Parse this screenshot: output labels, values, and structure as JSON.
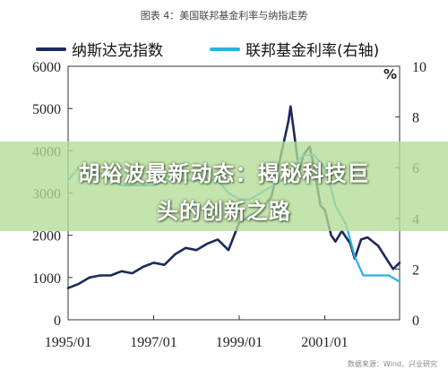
{
  "figure_title": "图表 4：美国联邦基金利率与纳指走势",
  "overlay_headline": {
    "line1": "胡裕波最新动态：揭秘科技巨",
    "line2": "头的创新之路"
  },
  "source_note": "数据来源：Wind、兴业研究",
  "colors": {
    "nasdaq": "#1b2a5c",
    "fed_rate": "#2ab0e4",
    "banner": "#b4dc96"
  },
  "chart_data": {
    "type": "line",
    "title": "图表 4：美国联邦基金利率与纳指走势",
    "x_ticks": [
      "1995/01",
      "1997/01",
      "1999/01",
      "2001/01"
    ],
    "x_range": [
      1995.0,
      2002.75
    ],
    "y_left": {
      "range": [
        0,
        6000
      ],
      "ticks": [
        0,
        1000,
        2000,
        3000,
        4000,
        5000,
        6000
      ]
    },
    "y_right": {
      "range": [
        0,
        10
      ],
      "ticks": [
        0,
        2,
        4,
        6,
        8,
        10
      ],
      "unit": "%"
    },
    "grid": false,
    "legend_position": "top",
    "series": [
      {
        "name": "纳斯达克指数",
        "axis": "left",
        "points": [
          [
            1995.0,
            750
          ],
          [
            1995.25,
            850
          ],
          [
            1995.5,
            1000
          ],
          [
            1995.75,
            1050
          ],
          [
            1996.0,
            1050
          ],
          [
            1996.25,
            1150
          ],
          [
            1996.5,
            1100
          ],
          [
            1996.75,
            1250
          ],
          [
            1997.0,
            1350
          ],
          [
            1997.25,
            1300
          ],
          [
            1997.5,
            1550
          ],
          [
            1997.75,
            1700
          ],
          [
            1998.0,
            1650
          ],
          [
            1998.25,
            1800
          ],
          [
            1998.5,
            1900
          ],
          [
            1998.75,
            1650
          ],
          [
            1999.0,
            2300
          ],
          [
            1999.25,
            2450
          ],
          [
            1999.5,
            2600
          ],
          [
            1999.75,
            2900
          ],
          [
            2000.0,
            4000
          ],
          [
            2000.15,
            4700
          ],
          [
            2000.2,
            5050
          ],
          [
            2000.3,
            4300
          ],
          [
            2000.4,
            3500
          ],
          [
            2000.5,
            3900
          ],
          [
            2000.65,
            4100
          ],
          [
            2000.75,
            3600
          ],
          [
            2000.9,
            2700
          ],
          [
            2001.0,
            2600
          ],
          [
            2001.15,
            2000
          ],
          [
            2001.25,
            1850
          ],
          [
            2001.4,
            2100
          ],
          [
            2001.6,
            1800
          ],
          [
            2001.7,
            1450
          ],
          [
            2001.85,
            1900
          ],
          [
            2002.0,
            1950
          ],
          [
            2002.25,
            1750
          ],
          [
            2002.5,
            1350
          ],
          [
            2002.6,
            1200
          ],
          [
            2002.75,
            1350
          ]
        ]
      },
      {
        "name": "联邦基金利率(右轴)",
        "axis": "right",
        "points": [
          [
            1995.0,
            5.5
          ],
          [
            1995.25,
            6.0
          ],
          [
            1995.5,
            5.8
          ],
          [
            1995.75,
            5.8
          ],
          [
            1996.0,
            5.5
          ],
          [
            1996.25,
            5.3
          ],
          [
            1996.5,
            5.3
          ],
          [
            1996.75,
            5.3
          ],
          [
            1997.0,
            5.3
          ],
          [
            1997.25,
            5.5
          ],
          [
            1997.5,
            5.5
          ],
          [
            1997.75,
            5.5
          ],
          [
            1998.0,
            5.5
          ],
          [
            1998.25,
            5.5
          ],
          [
            1998.5,
            5.5
          ],
          [
            1998.75,
            5.0
          ],
          [
            1999.0,
            4.75
          ],
          [
            1999.25,
            4.75
          ],
          [
            1999.5,
            5.0
          ],
          [
            1999.75,
            5.25
          ],
          [
            2000.0,
            5.5
          ],
          [
            2000.25,
            6.0
          ],
          [
            2000.5,
            6.5
          ],
          [
            2000.75,
            6.5
          ],
          [
            2001.0,
            6.0
          ],
          [
            2001.1,
            5.5
          ],
          [
            2001.25,
            4.5
          ],
          [
            2001.5,
            3.75
          ],
          [
            2001.7,
            2.5
          ],
          [
            2001.9,
            1.75
          ],
          [
            2002.0,
            1.75
          ],
          [
            2002.25,
            1.75
          ],
          [
            2002.5,
            1.75
          ],
          [
            2002.75,
            1.5
          ]
        ]
      }
    ]
  }
}
